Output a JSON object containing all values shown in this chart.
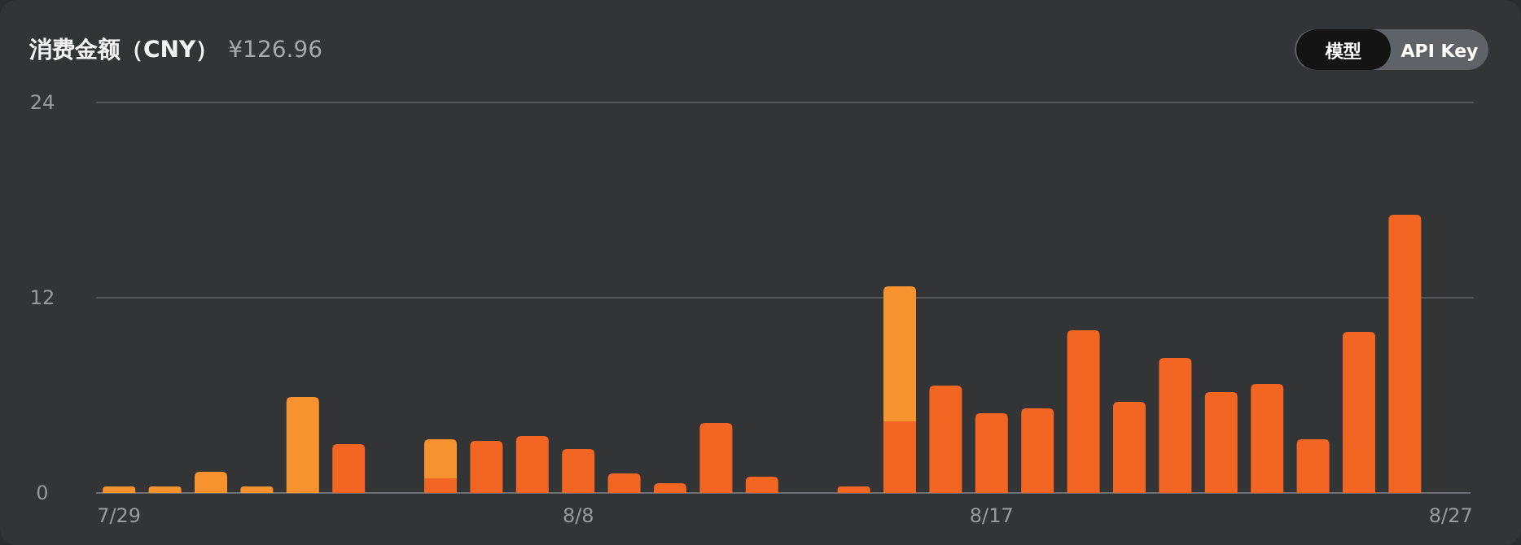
{
  "chart_data": {
    "type": "bar",
    "title": "消费金额（CNY）",
    "subtitle": "¥126.96",
    "annotations": [
      "模型",
      "API Key"
    ],
    "categories": [
      "7/29",
      null,
      null,
      null,
      null,
      null,
      null,
      null,
      null,
      null,
      "8/8",
      null,
      null,
      null,
      null,
      null,
      null,
      null,
      null,
      "8/17",
      null,
      null,
      null,
      null,
      null,
      null,
      null,
      null,
      null,
      "8/27"
    ],
    "stacked": true,
    "series": [
      {
        "color": "#f26522",
        "values": [
          0,
          0,
          0,
          0,
          0,
          3.0,
          0,
          0.9,
          3.2,
          3.5,
          2.7,
          1.2,
          0.6,
          4.3,
          1.0,
          0,
          0.4,
          4.4,
          6.6,
          4.9,
          5.2,
          10.0,
          5.6,
          8.3,
          6.2,
          6.7,
          3.3,
          9.9,
          17.1,
          0
        ]
      },
      {
        "color": "#f7932f",
        "values": [
          0.4,
          0.4,
          1.3,
          0.4,
          5.9,
          0,
          0,
          2.4,
          0,
          0,
          0,
          0,
          0,
          0,
          0,
          0,
          0,
          8.3,
          0,
          0,
          0,
          0,
          0,
          0,
          0,
          0,
          0,
          0,
          0,
          0
        ]
      }
    ],
    "ylim": [
      0,
      24
    ],
    "yticks": [
      0,
      12,
      24
    ],
    "grid": "y"
  }
}
